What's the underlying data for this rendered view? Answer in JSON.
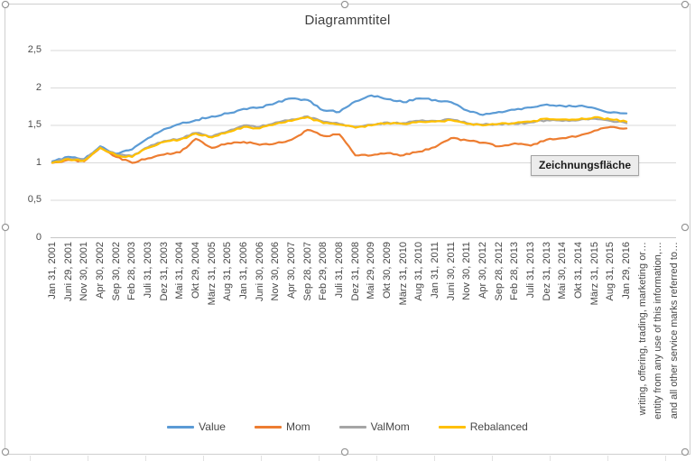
{
  "chart": {
    "title": "Diagrammtitel"
  },
  "tooltip": {
    "text": "Zeichnungsfläche"
  },
  "colors": {
    "value": "#5B9BD5",
    "mom": "#ED7D31",
    "valmom": "#A5A5A5",
    "rebalanced": "#FFC000",
    "gridline": "#D9D9D9",
    "axis_line": "#C6C6C6",
    "label_text": "#474747"
  },
  "chart_data": {
    "type": "line",
    "title": "Diagrammtitel",
    "ylim": [
      0,
      2.5
    ],
    "y_step": 0.5,
    "y_tick_labels_top_down": [
      "2,5",
      "2",
      "1,5",
      "1",
      "0,5",
      "0"
    ],
    "grid": true,
    "legend_position": "bottom",
    "x_tick_labels": [
      "Jan 31, 2001",
      "Juni 29, 2001",
      "Nov 30, 2001",
      "Apr 30, 2002",
      "Sep 30, 2002",
      "Feb 28, 2003",
      "Juli 31, 2003",
      "Dez 31, 2003",
      "Mai 31, 2004",
      "Okt 29, 2004",
      "März 31, 2005",
      "Aug 31, 2005",
      "Jan 31, 2006",
      "Juni 30, 2006",
      "Nov 30, 2006",
      "Apr 30, 2007",
      "Sep 28, 2007",
      "Feb 29, 2008",
      "Juli 31, 2008",
      "Dez 31, 2008",
      "Mai 29, 2009",
      "Okt 30, 2009",
      "März 31, 2010",
      "Aug 31, 2010",
      "Jan 31, 2011",
      "Juni 30, 2011",
      "Nov 30, 2011",
      "Apr 30, 2012",
      "Sep 28, 2012",
      "Feb 28, 2013",
      "Juli 31, 2013",
      "Dez 31, 2013",
      "Mai 30, 2014",
      "Okt 31, 2014",
      "März 31, 2015",
      "Aug 31, 2015",
      "Jan 29, 2016"
    ],
    "extra_x_labels": [
      "writing, offering, trading, marketing or…",
      "entity from any use of this information,…",
      "and all other service marks referred to…"
    ],
    "series": [
      {
        "name": "Value",
        "color": "#5B9BD5",
        "values": [
          1.02,
          1.08,
          1.05,
          1.22,
          1.12,
          1.18,
          1.33,
          1.45,
          1.52,
          1.57,
          1.62,
          1.66,
          1.72,
          1.74,
          1.8,
          1.86,
          1.84,
          1.7,
          1.68,
          1.82,
          1.9,
          1.85,
          1.81,
          1.86,
          1.84,
          1.81,
          1.7,
          1.64,
          1.68,
          1.71,
          1.74,
          1.78,
          1.76,
          1.76,
          1.73,
          1.67,
          1.66
        ]
      },
      {
        "name": "Mom",
        "color": "#ED7D31",
        "values": [
          1.0,
          1.04,
          1.02,
          1.2,
          1.08,
          1.0,
          1.06,
          1.11,
          1.14,
          1.32,
          1.2,
          1.26,
          1.28,
          1.24,
          1.26,
          1.31,
          1.44,
          1.36,
          1.38,
          1.1,
          1.1,
          1.13,
          1.1,
          1.15,
          1.21,
          1.33,
          1.3,
          1.27,
          1.22,
          1.26,
          1.23,
          1.31,
          1.33,
          1.36,
          1.43,
          1.48,
          1.46
        ]
      },
      {
        "name": "ValMom",
        "color": "#A5A5A5",
        "values": [
          1.01,
          1.06,
          1.04,
          1.21,
          1.11,
          1.09,
          1.21,
          1.29,
          1.32,
          1.4,
          1.35,
          1.42,
          1.5,
          1.48,
          1.54,
          1.58,
          1.62,
          1.55,
          1.52,
          1.48,
          1.51,
          1.54,
          1.53,
          1.56,
          1.56,
          1.58,
          1.53,
          1.51,
          1.52,
          1.52,
          1.54,
          1.57,
          1.56,
          1.57,
          1.59,
          1.56,
          1.53
        ]
      },
      {
        "name": "Rebalanced",
        "color": "#FFC000",
        "values": [
          1.0,
          1.05,
          1.03,
          1.2,
          1.1,
          1.08,
          1.2,
          1.28,
          1.31,
          1.39,
          1.34,
          1.41,
          1.48,
          1.46,
          1.52,
          1.56,
          1.61,
          1.53,
          1.51,
          1.47,
          1.5,
          1.53,
          1.52,
          1.55,
          1.55,
          1.57,
          1.52,
          1.5,
          1.52,
          1.53,
          1.55,
          1.59,
          1.58,
          1.58,
          1.61,
          1.58,
          1.55
        ]
      }
    ]
  }
}
